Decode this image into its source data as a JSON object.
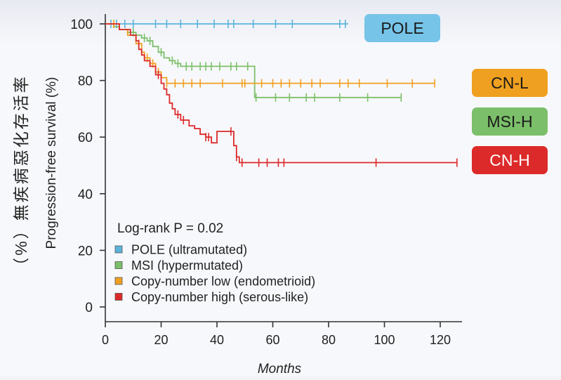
{
  "chart_data": {
    "type": "line",
    "subtype": "kaplan-meier",
    "ylabel": "Progression-free survival (%)",
    "ylabel_secondary": "（%）無疾病惡化存活率",
    "xlabel": "Months",
    "xlim": [
      0,
      128
    ],
    "ylim": [
      0,
      100
    ],
    "x_ticks": [
      0,
      20,
      40,
      60,
      80,
      100,
      120
    ],
    "y_ticks": [
      0,
      20,
      40,
      60,
      80,
      100
    ],
    "grid": false,
    "annotation": "Log-rank P = 0.02",
    "legend_position": "bottom-left",
    "series": [
      {
        "name": "POLE (ultramutated)",
        "label": "POLE",
        "color": "#5ab4dc",
        "steps": [
          [
            0,
            100
          ],
          [
            87,
            100
          ]
        ],
        "censored": [
          2,
          4,
          7,
          10,
          18,
          22,
          27,
          33,
          39,
          44,
          46,
          53,
          61,
          67,
          84,
          86
        ]
      },
      {
        "name": "MSI (hypermutated)",
        "label": "MSI-H",
        "color": "#7cbf6a",
        "steps": [
          [
            0,
            100
          ],
          [
            3,
            99
          ],
          [
            5,
            98
          ],
          [
            8,
            97
          ],
          [
            11,
            96
          ],
          [
            13,
            95
          ],
          [
            15,
            94
          ],
          [
            17,
            92
          ],
          [
            19,
            90
          ],
          [
            21,
            88
          ],
          [
            23,
            87
          ],
          [
            25,
            86
          ],
          [
            27,
            85
          ],
          [
            53,
            85
          ],
          [
            53.5,
            74
          ],
          [
            106,
            74
          ]
        ],
        "censored": [
          10,
          14,
          16,
          20,
          24,
          26,
          29,
          31,
          34,
          36,
          38,
          41,
          45,
          47,
          51,
          54,
          61,
          66,
          72,
          75,
          84,
          94,
          106
        ]
      },
      {
        "name": "Copy-number low (endometrioid)",
        "label": "CN-L",
        "color": "#f0a020",
        "steps": [
          [
            0,
            100
          ],
          [
            5,
            98
          ],
          [
            8,
            96
          ],
          [
            11,
            93
          ],
          [
            13,
            90
          ],
          [
            14,
            88
          ],
          [
            16,
            86
          ],
          [
            18,
            83
          ],
          [
            20,
            81
          ],
          [
            22,
            79
          ],
          [
            118,
            79
          ]
        ],
        "censored": [
          3,
          12,
          15,
          17,
          19,
          22,
          25,
          28,
          31,
          34,
          42,
          49,
          50,
          56,
          60,
          63,
          66,
          70,
          74,
          77,
          84,
          87,
          91,
          101,
          110,
          118
        ]
      },
      {
        "name": "Copy-number high (serous-like)",
        "label": "CN-H",
        "color": "#dc2a2a",
        "steps": [
          [
            0,
            100
          ],
          [
            5,
            98
          ],
          [
            9,
            96
          ],
          [
            11,
            94
          ],
          [
            12,
            91
          ],
          [
            13,
            89
          ],
          [
            14,
            87
          ],
          [
            16,
            85
          ],
          [
            18,
            82
          ],
          [
            20,
            79
          ],
          [
            21,
            77
          ],
          [
            22,
            75
          ],
          [
            23,
            72
          ],
          [
            24,
            70
          ],
          [
            25,
            68
          ],
          [
            27,
            66
          ],
          [
            30,
            64
          ],
          [
            32,
            63
          ],
          [
            34,
            61
          ],
          [
            36,
            60
          ],
          [
            38,
            58
          ],
          [
            40,
            62
          ],
          [
            45,
            62
          ],
          [
            46,
            57
          ],
          [
            47,
            53
          ],
          [
            48,
            51
          ],
          [
            126,
            51
          ]
        ],
        "censored": [
          19,
          26,
          28,
          36,
          37,
          45,
          47,
          49,
          55,
          58,
          62,
          64,
          97,
          126
        ]
      }
    ]
  },
  "legend": {
    "items": [
      {
        "label": "POLE (ultramutated)",
        "color": "#5ab4dc"
      },
      {
        "label": "MSI (hypermutated)",
        "color": "#7cbf6a"
      },
      {
        "label": "Copy-number low (endometrioid)",
        "color": "#f0a020"
      },
      {
        "label": "Copy-number high (serous-like)",
        "color": "#dc2a2a"
      }
    ]
  },
  "badges": [
    {
      "label": "POLE",
      "color": "#76c4e8",
      "text_color": "#1a1a1a"
    },
    {
      "label": "CN-L",
      "color": "#f0a020",
      "text_color": "#1a1a1a"
    },
    {
      "label": "MSI-H",
      "color": "#7cbf6a",
      "text_color": "#1a1a1a"
    },
    {
      "label": "CN-H",
      "color": "#dc2a2a",
      "text_color": "#ffffff"
    }
  ]
}
